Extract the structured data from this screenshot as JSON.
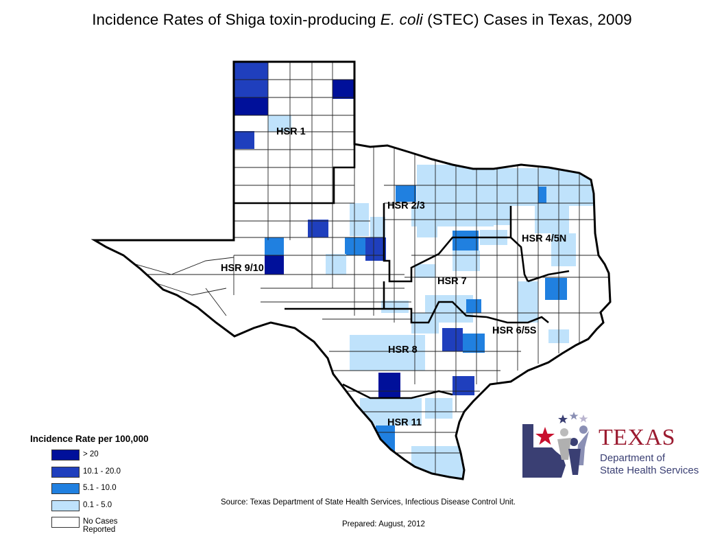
{
  "title": {
    "prefix": "Incidence Rates of Shiga toxin-producing ",
    "italic": "E. coli",
    "suffix": " (STEC) Cases in Texas, 2009"
  },
  "colors": {
    "gt20": "#00109a",
    "r10_20": "#1f3fbd",
    "r5_10": "#2080e0",
    "r0_5": "#bfe2fb",
    "none": "#ffffff",
    "county_line": "#222222",
    "region_line": "#000000"
  },
  "regions": [
    {
      "label": "HSR 1"
    },
    {
      "label": "HSR 2/3"
    },
    {
      "label": "HSR 4/5N"
    },
    {
      "label": "HSR 9/10"
    },
    {
      "label": "HSR 7"
    },
    {
      "label": "HSR 6/5S"
    },
    {
      "label": "HSR 8"
    },
    {
      "label": "HSR 11"
    }
  ],
  "legend": {
    "title": "Incidence Rate per 100,000",
    "items": [
      {
        "label": "> 20",
        "color": "#00109a"
      },
      {
        "label": "10.1 - 20.0",
        "color": "#1f3fbd"
      },
      {
        "label": "5.1 - 10.0",
        "color": "#2080e0"
      },
      {
        "label": "0.1 - 5.0",
        "color": "#bfe2fb"
      },
      {
        "label": "No Cases Reported",
        "color": "#ffffff"
      }
    ]
  },
  "source": "Source: Texas Department of State Health Services, Infectious Disease Control Unit.",
  "prepared": "Prepared: August, 2012",
  "logo": {
    "line1": "TEXAS",
    "line2": "Department of",
    "line3": "State Health Services"
  }
}
